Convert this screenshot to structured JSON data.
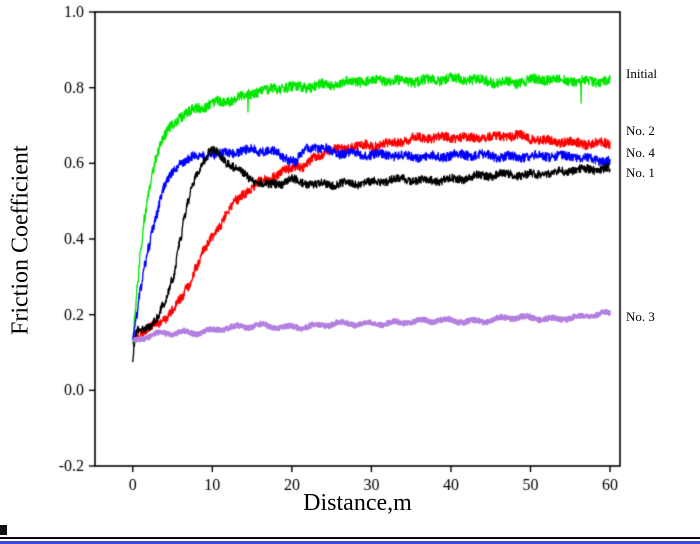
{
  "figure": {
    "background": "#ffffff",
    "axis_color": "#000000",
    "artifact_line_black": "#0a0a0a",
    "artifact_line_blue": "#3a4bdc"
  },
  "chart_data": {
    "type": "line",
    "title": "",
    "xlabel": "Distance,m",
    "ylabel": "Friction Coefficient",
    "xlim": [
      -4.75,
      61.25
    ],
    "ylim": [
      -0.2,
      1.0
    ],
    "x_ticks": [
      0,
      10,
      20,
      30,
      40,
      50,
      60
    ],
    "x_tick_labels": [
      "0",
      "10",
      "20",
      "30",
      "40",
      "50",
      "60"
    ],
    "y_ticks": [
      -0.2,
      0.0,
      0.2,
      0.4,
      0.6,
      0.8,
      1.0
    ],
    "y_tick_labels": [
      "-0.2",
      "0.0",
      "0.2",
      "0.4",
      "0.6",
      "0.8",
      "1.0"
    ],
    "grid": false,
    "legend_position": "right-outside",
    "series": [
      {
        "name": "Initial",
        "color": "#00e600",
        "noise": 0.013,
        "spikes": true,
        "width": 1.3,
        "label_y": 0.835,
        "keypoints": [
          [
            0,
            0.13
          ],
          [
            0.3,
            0.2
          ],
          [
            0.6,
            0.28
          ],
          [
            1,
            0.37
          ],
          [
            1.5,
            0.46
          ],
          [
            2,
            0.53
          ],
          [
            2.5,
            0.58
          ],
          [
            3,
            0.62
          ],
          [
            3.5,
            0.65
          ],
          [
            4,
            0.67
          ],
          [
            4.5,
            0.69
          ],
          [
            5,
            0.7
          ],
          [
            6,
            0.72
          ],
          [
            7,
            0.73
          ],
          [
            8,
            0.745
          ],
          [
            9,
            0.75
          ],
          [
            10,
            0.76
          ],
          [
            11,
            0.765
          ],
          [
            12,
            0.77
          ],
          [
            13,
            0.775
          ],
          [
            14,
            0.78
          ],
          [
            15,
            0.785
          ],
          [
            16,
            0.79
          ],
          [
            17,
            0.79
          ],
          [
            18,
            0.795
          ],
          [
            19,
            0.8
          ],
          [
            20,
            0.8
          ],
          [
            22,
            0.805
          ],
          [
            24,
            0.81
          ],
          [
            26,
            0.81
          ],
          [
            28,
            0.815
          ],
          [
            30,
            0.815
          ],
          [
            33,
            0.82
          ],
          [
            36,
            0.82
          ],
          [
            40,
            0.82
          ],
          [
            44,
            0.82
          ],
          [
            48,
            0.815
          ],
          [
            52,
            0.82
          ],
          [
            56,
            0.82
          ],
          [
            60,
            0.82
          ]
        ]
      },
      {
        "name": "No. 2",
        "color": "#ff0000",
        "noise": 0.012,
        "spikes": false,
        "width": 1.3,
        "label_y": 0.685,
        "keypoints": [
          [
            0,
            0.14
          ],
          [
            1,
            0.15
          ],
          [
            2,
            0.16
          ],
          [
            3,
            0.17
          ],
          [
            4,
            0.19
          ],
          [
            5,
            0.21
          ],
          [
            6,
            0.24
          ],
          [
            7,
            0.28
          ],
          [
            8,
            0.33
          ],
          [
            9,
            0.37
          ],
          [
            10,
            0.41
          ],
          [
            11,
            0.44
          ],
          [
            12,
            0.47
          ],
          [
            13,
            0.5
          ],
          [
            14,
            0.52
          ],
          [
            15,
            0.53
          ],
          [
            16,
            0.55
          ],
          [
            17,
            0.56
          ],
          [
            18,
            0.57
          ],
          [
            19,
            0.58
          ],
          [
            20,
            0.59
          ],
          [
            20.5,
            0.6
          ],
          [
            21,
            0.595
          ],
          [
            21.5,
            0.59
          ],
          [
            22,
            0.6
          ],
          [
            23,
            0.615
          ],
          [
            24,
            0.625
          ],
          [
            25,
            0.63
          ],
          [
            26,
            0.635
          ],
          [
            28,
            0.645
          ],
          [
            30,
            0.65
          ],
          [
            32,
            0.655
          ],
          [
            34,
            0.66
          ],
          [
            36,
            0.665
          ],
          [
            38,
            0.665
          ],
          [
            40,
            0.67
          ],
          [
            42,
            0.67
          ],
          [
            44,
            0.67
          ],
          [
            46,
            0.67
          ],
          [
            48,
            0.67
          ],
          [
            50,
            0.665
          ],
          [
            52,
            0.66
          ],
          [
            54,
            0.66
          ],
          [
            56,
            0.655
          ],
          [
            58,
            0.65
          ],
          [
            60,
            0.65
          ]
        ]
      },
      {
        "name": "No. 4",
        "color": "#0000ff",
        "noise": 0.012,
        "spikes": false,
        "width": 1.3,
        "label_y": 0.628,
        "keypoints": [
          [
            0,
            0.14
          ],
          [
            0.5,
            0.2
          ],
          [
            1,
            0.27
          ],
          [
            1.5,
            0.33
          ],
          [
            2,
            0.38
          ],
          [
            2.5,
            0.43
          ],
          [
            3,
            0.47
          ],
          [
            3.5,
            0.51
          ],
          [
            4,
            0.54
          ],
          [
            4.5,
            0.56
          ],
          [
            5,
            0.575
          ],
          [
            5.5,
            0.59
          ],
          [
            6,
            0.6
          ],
          [
            7,
            0.61
          ],
          [
            8,
            0.615
          ],
          [
            9,
            0.62
          ],
          [
            10,
            0.62
          ],
          [
            11,
            0.625
          ],
          [
            12,
            0.63
          ],
          [
            13,
            0.635
          ],
          [
            14,
            0.635
          ],
          [
            15,
            0.64
          ],
          [
            16,
            0.635
          ],
          [
            17,
            0.63
          ],
          [
            18,
            0.625
          ],
          [
            19,
            0.615
          ],
          [
            20,
            0.605
          ],
          [
            20.5,
            0.6
          ],
          [
            21,
            0.615
          ],
          [
            22,
            0.64
          ],
          [
            23,
            0.645
          ],
          [
            24,
            0.64
          ],
          [
            25,
            0.635
          ],
          [
            26,
            0.63
          ],
          [
            28,
            0.625
          ],
          [
            30,
            0.62
          ],
          [
            33,
            0.62
          ],
          [
            36,
            0.62
          ],
          [
            40,
            0.62
          ],
          [
            45,
            0.62
          ],
          [
            50,
            0.62
          ],
          [
            55,
            0.615
          ],
          [
            60,
            0.61
          ]
        ]
      },
      {
        "name": "No. 1",
        "color": "#000000",
        "noise": 0.011,
        "spikes": false,
        "width": 1.3,
        "label_y": 0.575,
        "keypoints": [
          [
            0,
            0.07
          ],
          [
            0.2,
            0.12
          ],
          [
            0.5,
            0.15
          ],
          [
            1,
            0.16
          ],
          [
            2,
            0.17
          ],
          [
            3,
            0.19
          ],
          [
            4,
            0.23
          ],
          [
            5,
            0.3
          ],
          [
            6,
            0.4
          ],
          [
            6.5,
            0.46
          ],
          [
            7,
            0.5
          ],
          [
            7.5,
            0.54
          ],
          [
            8,
            0.57
          ],
          [
            9,
            0.61
          ],
          [
            9.5,
            0.625
          ],
          [
            10,
            0.63
          ],
          [
            10.5,
            0.625
          ],
          [
            11,
            0.615
          ],
          [
            12,
            0.6
          ],
          [
            13,
            0.585
          ],
          [
            14,
            0.57
          ],
          [
            15,
            0.56
          ],
          [
            16,
            0.55
          ],
          [
            17,
            0.545
          ],
          [
            18,
            0.55
          ],
          [
            19,
            0.55
          ],
          [
            20,
            0.555
          ],
          [
            21,
            0.55
          ],
          [
            22,
            0.545
          ],
          [
            23,
            0.54
          ],
          [
            25,
            0.545
          ],
          [
            27,
            0.55
          ],
          [
            30,
            0.55
          ],
          [
            33,
            0.555
          ],
          [
            36,
            0.555
          ],
          [
            40,
            0.56
          ],
          [
            44,
            0.565
          ],
          [
            48,
            0.57
          ],
          [
            52,
            0.575
          ],
          [
            56,
            0.58
          ],
          [
            60,
            0.585
          ]
        ]
      },
      {
        "name": "No. 3",
        "color": "#b37fe0",
        "noise": 0.006,
        "spikes": false,
        "width": 2.4,
        "label_y": 0.195,
        "keypoints": [
          [
            0,
            0.13
          ],
          [
            1,
            0.135
          ],
          [
            2,
            0.14
          ],
          [
            3,
            0.145
          ],
          [
            4,
            0.15
          ],
          [
            5,
            0.15
          ],
          [
            6,
            0.155
          ],
          [
            8,
            0.155
          ],
          [
            10,
            0.16
          ],
          [
            12,
            0.165
          ],
          [
            14,
            0.165
          ],
          [
            16,
            0.17
          ],
          [
            18,
            0.17
          ],
          [
            20,
            0.17
          ],
          [
            22,
            0.17
          ],
          [
            24,
            0.17
          ],
          [
            26,
            0.175
          ],
          [
            28,
            0.175
          ],
          [
            30,
            0.18
          ],
          [
            33,
            0.18
          ],
          [
            36,
            0.18
          ],
          [
            40,
            0.185
          ],
          [
            44,
            0.185
          ],
          [
            48,
            0.19
          ],
          [
            52,
            0.19
          ],
          [
            56,
            0.195
          ],
          [
            60,
            0.2
          ]
        ]
      }
    ]
  }
}
